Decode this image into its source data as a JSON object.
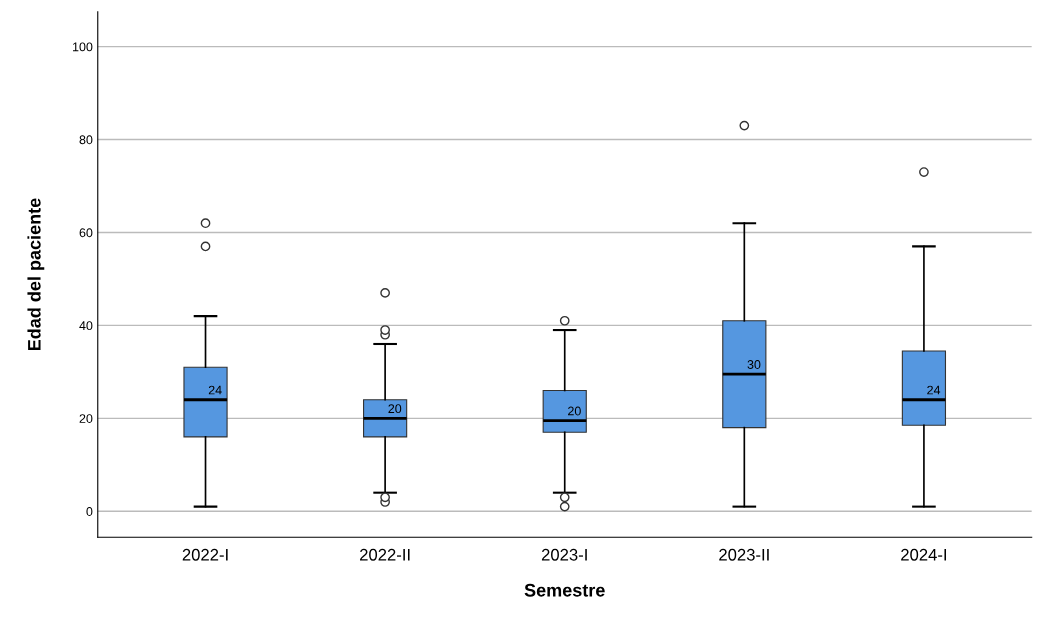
{
  "chart_data": {
    "type": "box",
    "xlabel": "Semestre",
    "ylabel": "Edad del paciente",
    "categories": [
      "2022-I",
      "2022-II",
      "2023-I",
      "2023-II",
      "2024-I"
    ],
    "boxes": [
      {
        "low": 1,
        "q1": 16,
        "median": 24,
        "q3": 31,
        "high": 42,
        "outliers": [
          57,
          62
        ]
      },
      {
        "low": 4,
        "q1": 16,
        "median": 20,
        "q3": 24,
        "high": 36,
        "outliers": [
          2,
          3,
          38,
          39,
          47
        ]
      },
      {
        "low": 4,
        "q1": 17,
        "median": 19.5,
        "q3": 26,
        "high": 39,
        "outliers": [
          1,
          3,
          41
        ]
      },
      {
        "low": 1,
        "q1": 18,
        "median": 29.5,
        "q3": 41,
        "high": 62,
        "outliers": [
          83
        ]
      },
      {
        "low": 1,
        "q1": 18.5,
        "median": 24,
        "q3": 34.5,
        "high": 57,
        "outliers": [
          73
        ]
      }
    ],
    "value_labels": [
      "24",
      "20",
      "20",
      "30",
      "24"
    ],
    "color": "#5597e0",
    "marker": "circle",
    "grid": "y",
    "ylim": [
      -5.6,
      107.5
    ],
    "yticks": [
      0,
      20,
      40,
      60,
      80,
      100
    ]
  }
}
